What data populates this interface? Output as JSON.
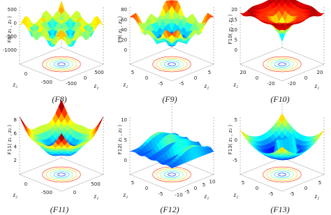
{
  "panels": [
    {
      "caption": "(F8)",
      "z_label": "F8( z₁ , z₂ )",
      "z_ticks": [
        "500",
        "0",
        "-500",
        "-1000"
      ],
      "left_ticks": [
        "0",
        "-500"
      ],
      "right_ticks": [
        "-500",
        "0",
        "500"
      ],
      "left_axis_label": "z₂",
      "right_axis_label": "z₁"
    },
    {
      "caption": "(F9)",
      "z_label": "F9( z₁ , z₂ )",
      "z_ticks": [
        "80",
        "60",
        "40",
        "20",
        "0"
      ],
      "left_ticks": [
        "5",
        "0",
        "-5"
      ],
      "right_ticks": [
        "-5",
        "0",
        "5"
      ],
      "left_axis_label": "z₂",
      "right_axis_label": "z₁"
    },
    {
      "caption": "(F10)",
      "z_label": "F10( z₁ , z₂ )",
      "z_ticks": [
        "20",
        "15",
        "10",
        "5",
        "0"
      ],
      "left_ticks": [
        "20",
        "0",
        "-20"
      ],
      "right_ticks": [
        "-20",
        "0",
        "20"
      ],
      "left_axis_label": "z₂",
      "right_axis_label": "z₁"
    },
    {
      "caption": "(F11)",
      "z_label": "F11( z₁ , z₂ )",
      "z_ticks": [
        "8",
        "6",
        "4",
        "2"
      ],
      "left_ticks": [
        "0",
        "-500"
      ],
      "right_ticks": [
        "0",
        "500"
      ],
      "left_axis_label": "z₂",
      "right_axis_label": "z₁"
    },
    {
      "caption": "(F12)",
      "z_label": "F12( z₁ , z₂ )",
      "z_ticks": [
        "10",
        "5",
        "0"
      ],
      "left_ticks": [
        "5",
        "0",
        "-5"
      ],
      "right_ticks": [
        "-10",
        "-5",
        "0",
        "5",
        "10"
      ],
      "left_axis_label": "z₂",
      "right_axis_label": "z₁"
    },
    {
      "caption": "(F13)",
      "z_label": "F13( z₁ , z₂ )",
      "z_ticks": [
        "5",
        "0",
        "-5"
      ],
      "left_ticks": [
        "5",
        "0",
        "-5"
      ],
      "right_ticks": [
        "-5",
        "0",
        "5"
      ],
      "left_axis_label": "z₂",
      "right_axis_label": "z₁"
    }
  ]
}
